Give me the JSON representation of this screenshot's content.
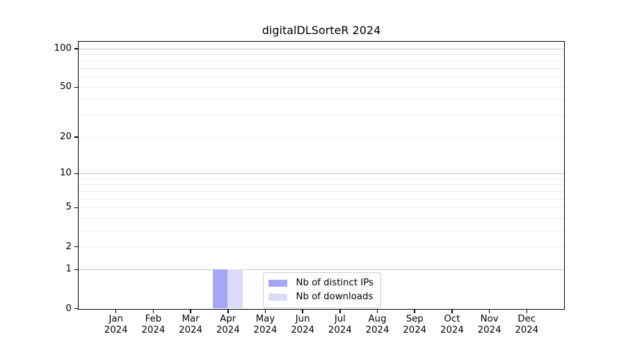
{
  "chart_data": {
    "type": "bar",
    "title": "digitalDLSorteR 2024",
    "categories": [
      "Jan 2024",
      "Feb 2024",
      "Mar 2024",
      "Apr 2024",
      "May 2024",
      "Jun 2024",
      "Jul 2024",
      "Aug 2024",
      "Sep 2024",
      "Oct 2024",
      "Nov 2024",
      "Dec 2024"
    ],
    "series": [
      {
        "name": "Nb of distinct IPs",
        "color": "#a6a6f7",
        "values": [
          0,
          0,
          0,
          1,
          0,
          0,
          0,
          0,
          0,
          0,
          0,
          0
        ]
      },
      {
        "name": "Nb of downloads",
        "color": "#dbdbf8",
        "values": [
          0,
          0,
          0,
          1,
          0,
          0,
          0,
          0,
          0,
          0,
          0,
          0
        ]
      }
    ],
    "xlabel": "",
    "ylabel": "",
    "yscale": "log1p",
    "ylim": [
      0,
      114
    ],
    "y_ticks": [
      0,
      1,
      2,
      5,
      10,
      20,
      50,
      100
    ],
    "y_major_gridlines": [
      1,
      10,
      100
    ],
    "y_minor_gridlines": [
      2,
      3,
      4,
      5,
      6,
      7,
      8,
      9,
      20,
      30,
      40,
      50,
      60,
      70,
      80,
      90
    ],
    "grid": "horizontal",
    "legend_position": "lower center"
  },
  "colors": {
    "background": "#ffffff",
    "axis": "#000000",
    "text": "#000000",
    "major_grid": "#c4c4c4",
    "minor_grid": "#ebebeb",
    "legend_border": "#cccccc",
    "bar_distinct_ips": "#a6a6f7",
    "bar_downloads": "#dbdbf8"
  }
}
